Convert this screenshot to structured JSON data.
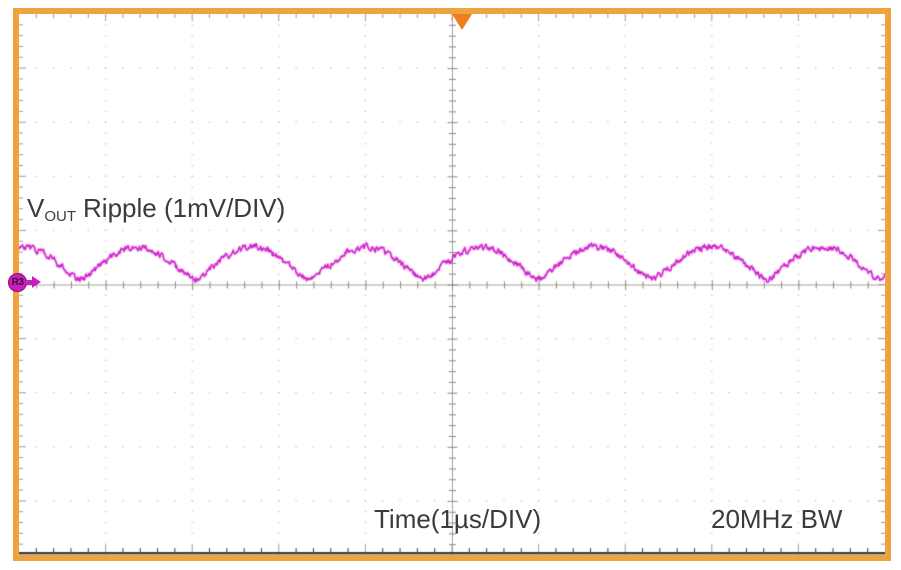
{
  "labels": {
    "vout_symbol": "V",
    "vout_subscript": "OUT",
    "vout_rest": "Ripple (1mV/DIV)",
    "time_axis": "Time(1µs/DIV)",
    "bandwidth": "20MHz BW",
    "reference_marker": "R3"
  },
  "colors": {
    "frame": "#eda43e",
    "trigger": "#ee7e1b",
    "trace": "#cf1fca",
    "edge_ticks": "#9f9c94",
    "grid_dots": "#c3c0b7",
    "crosshair_line": "#a5a29b",
    "crosshair_ticks": "#8d8a83",
    "bottom_axis": "#3d3d3d",
    "text": "#3b3b3b"
  },
  "chart_data": {
    "type": "line",
    "title": "VOUT Ripple (1mV/DIV)",
    "xlabel": "Time(1µs/DIV)",
    "ylabel": "VOUT Ripple (1mV/DIV)",
    "annotations": [
      "20MHz BW"
    ],
    "x_divisions": 10,
    "y_divisions": 10,
    "minor_per_division": 5,
    "x_units_per_div": "1 µs",
    "y_units_per_div": "1 mV",
    "grid_style": "dotted major gridlines, solid center crosshair with minor ticks, tick marks on all edges, dark bottom axis line",
    "legend_position": "none",
    "trigger": {
      "edge": "top",
      "position_div_from_left": 5.12
    },
    "series": [
      {
        "name": "R3",
        "color": "#cf1fca",
        "description": "switching-converter output ripple: rounded humps with sharp valleys plus wideband noise",
        "period_us": 1.32,
        "ripple_peak_to_peak_mv": 0.6,
        "noise_peak_to_peak_mv": 0.15,
        "baseline_offset_div_above_center": 0.055,
        "valley_offset_mv": 0.04,
        "first_valley_at_div": 2.03,
        "hump_exponent": 1.3
      }
    ]
  }
}
